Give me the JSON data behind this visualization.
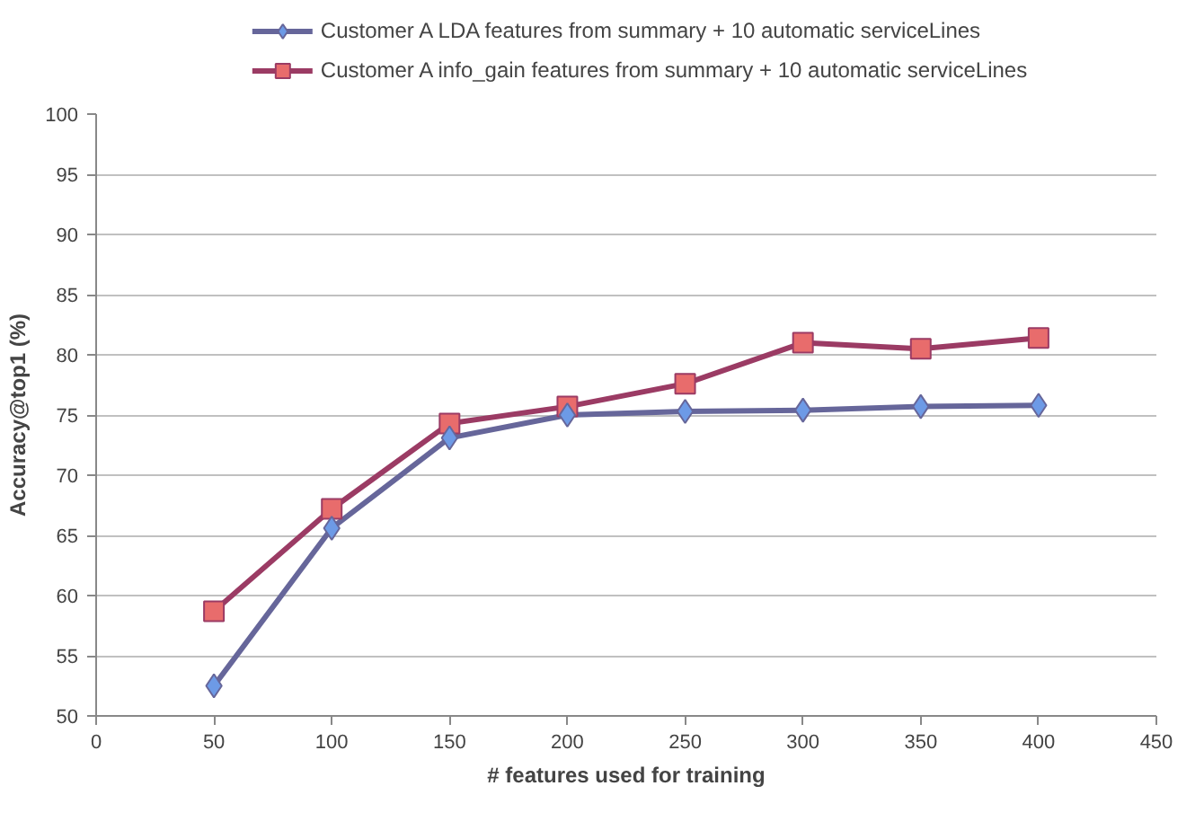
{
  "chart_data": {
    "type": "line",
    "xlabel": "# features used for training",
    "ylabel": "Accuracy@top1 (%)",
    "x": [
      50,
      100,
      150,
      200,
      250,
      300,
      350,
      400
    ],
    "series": [
      {
        "name": "Customer A LDA features from summary + 10 automatic serviceLines",
        "color": "#66669a",
        "marker": "diamond",
        "values": [
          52.5,
          65.6,
          73.1,
          75.0,
          75.3,
          75.4,
          75.7,
          75.8
        ]
      },
      {
        "name": "Customer A info_gain features from summary + 10 automatic serviceLines",
        "color": "#9b3b64",
        "marker": "square",
        "values": [
          58.7,
          67.2,
          74.3,
          75.7,
          77.6,
          81.0,
          80.5,
          81.4
        ]
      }
    ],
    "xlim": [
      0,
      450
    ],
    "xticks": [
      0,
      50,
      100,
      150,
      200,
      250,
      300,
      350,
      400,
      450
    ],
    "ylim": [
      50,
      100
    ],
    "yticks": [
      50,
      55,
      60,
      65,
      70,
      75,
      80,
      85,
      90,
      95,
      100
    ],
    "grid": "y",
    "legend": "top",
    "line_style": "solid"
  }
}
